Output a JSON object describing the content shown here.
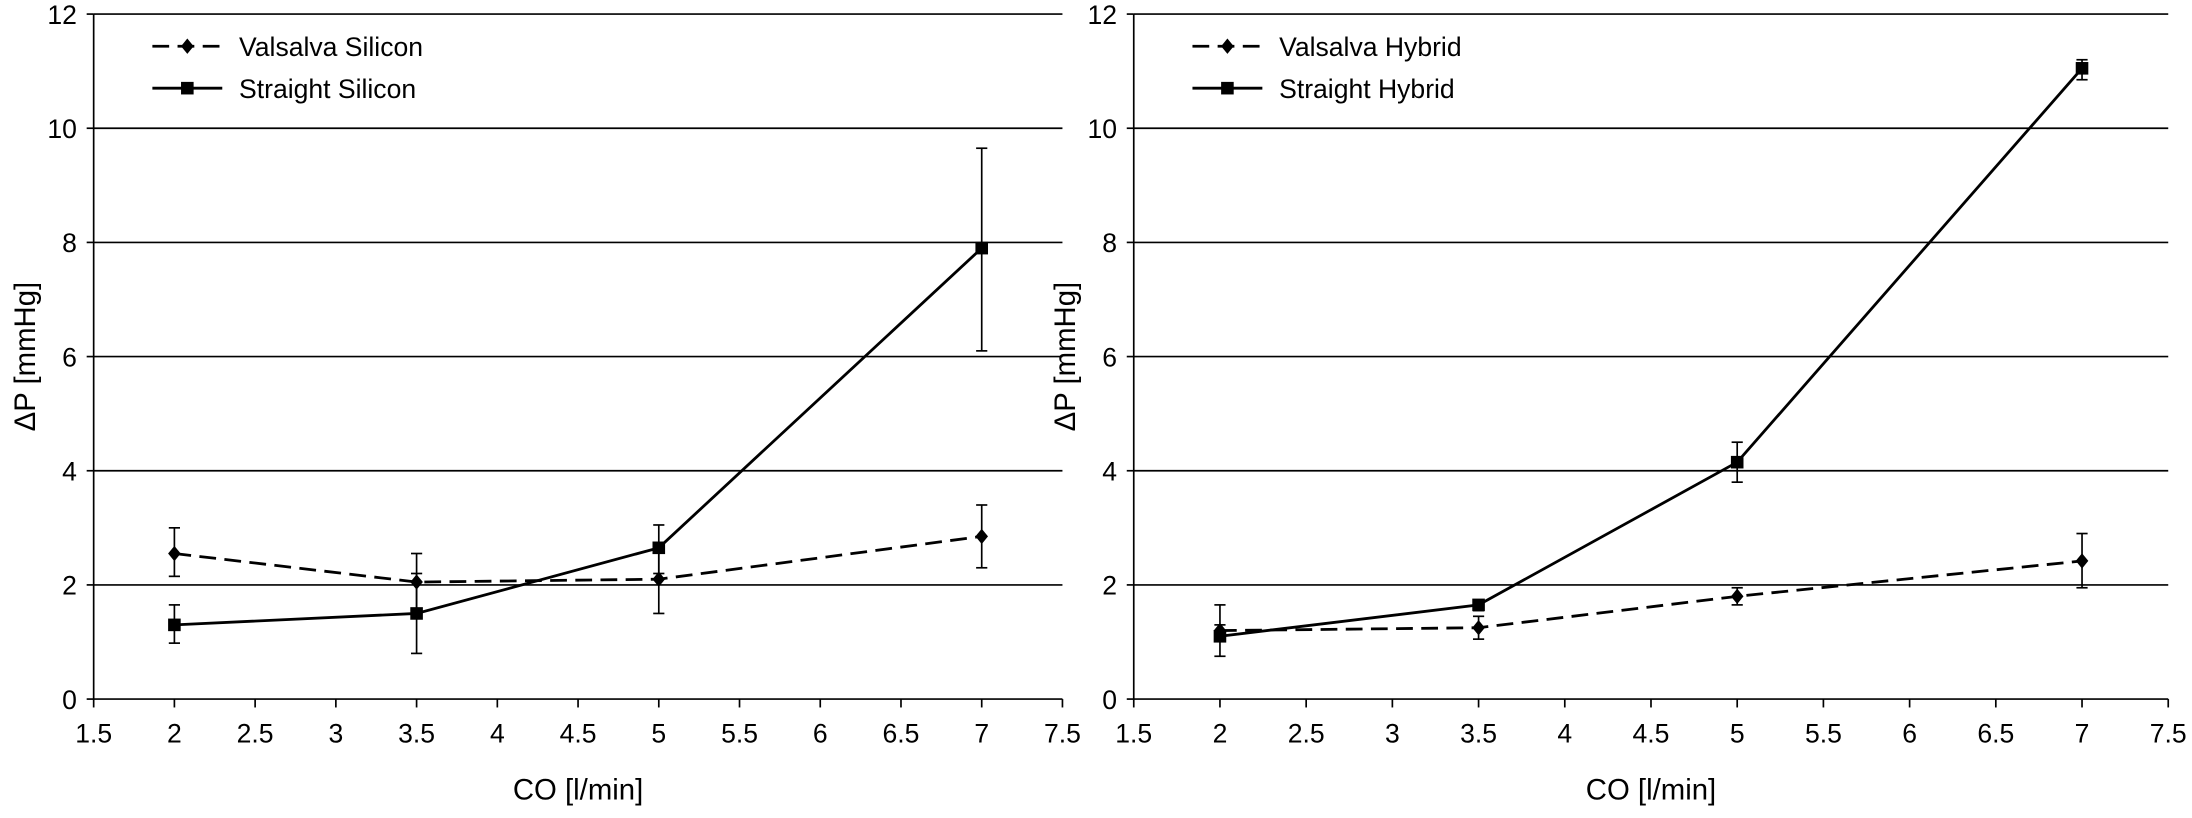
{
  "chart_data": [
    {
      "type": "line",
      "xlabel": "CO  [l/min]",
      "ylabel": "ΔP  [mmHg]",
      "xlim": [
        1.5,
        7.5
      ],
      "ylim": [
        0,
        12
      ],
      "xticks": [
        "1.5",
        "2",
        "2.5",
        "3",
        "3.5",
        "4",
        "4.5",
        "5",
        "5.5",
        "6",
        "6.5",
        "7",
        "7.5"
      ],
      "yticks": [
        "0",
        "2",
        "4",
        "6",
        "8",
        "10",
        "12"
      ],
      "grid": "horizontal",
      "legend_position": "top-left",
      "x": [
        2,
        3.5,
        5,
        7
      ],
      "series": [
        {
          "name": "Valsalva Silicon",
          "style": "dashed",
          "marker": "diamond",
          "values": [
            2.55,
            2.05,
            2.1,
            2.85
          ],
          "err_low": [
            2.15,
            1.55,
            1.5,
            2.3
          ],
          "err_high": [
            3.0,
            2.55,
            2.7,
            3.4
          ]
        },
        {
          "name": "Straight Silicon",
          "style": "solid",
          "marker": "square",
          "values": [
            1.3,
            1.5,
            2.65,
            7.9
          ],
          "err_low": [
            0.98,
            0.8,
            2.2,
            6.1
          ],
          "err_high": [
            1.65,
            2.2,
            3.05,
            9.65
          ]
        }
      ]
    },
    {
      "type": "line",
      "xlabel": "CO  [l/min]",
      "ylabel": "ΔP  [mmHg]",
      "xlim": [
        1.5,
        7.5
      ],
      "ylim": [
        0,
        12
      ],
      "xticks": [
        "1.5",
        "2",
        "2.5",
        "3",
        "3.5",
        "4",
        "4.5",
        "5",
        "5.5",
        "6",
        "6.5",
        "7",
        "7.5"
      ],
      "yticks": [
        "0",
        "2",
        "4",
        "6",
        "8",
        "10",
        "12"
      ],
      "grid": "horizontal",
      "legend_position": "top-left",
      "x": [
        2,
        3.5,
        5,
        7
      ],
      "series": [
        {
          "name": "Valsalva Hybrid",
          "style": "dashed",
          "marker": "diamond",
          "values": [
            1.2,
            1.25,
            1.8,
            2.42
          ],
          "err_low": [
            1.1,
            1.05,
            1.65,
            1.95
          ],
          "err_high": [
            1.3,
            1.45,
            1.95,
            2.9
          ]
        },
        {
          "name": "Straight Hybrid",
          "style": "solid",
          "marker": "square",
          "values": [
            1.1,
            1.65,
            4.15,
            11.05
          ],
          "err_low": [
            0.75,
            1.55,
            3.8,
            10.85
          ],
          "err_high": [
            1.65,
            1.72,
            4.5,
            11.2
          ]
        }
      ]
    }
  ]
}
